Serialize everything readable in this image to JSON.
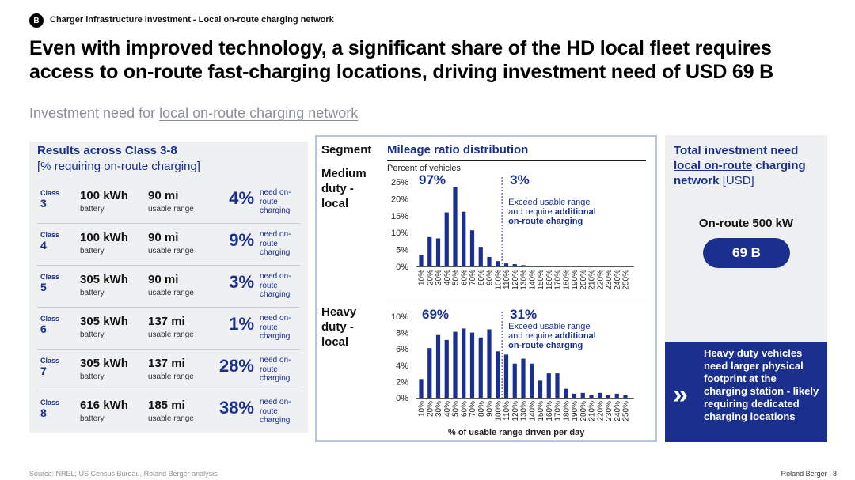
{
  "header": {
    "badge": "B",
    "section": "Charger infrastructure investment - Local on-route charging network",
    "title": "Even with improved technology, a significant share of the HD local fleet requires access to on-route fast-charging locations, driving investment need of USD 69 B",
    "subtitle_prefix": "Investment need for ",
    "subtitle_link": "local on-route charging network"
  },
  "results": {
    "title": "Results across Class 3-8",
    "subtitle": "[% requiring on-route charging]",
    "class_label": "Class",
    "battery_label": "battery",
    "range_label": "usable range",
    "need_label": "need on-route charging",
    "rows": [
      {
        "cls": "3",
        "kwh": "100 kWh",
        "mi": "90 mi",
        "pct": "4%"
      },
      {
        "cls": "4",
        "kwh": "100 kWh",
        "mi": "90 mi",
        "pct": "9%"
      },
      {
        "cls": "5",
        "kwh": "305 kWh",
        "mi": "90 mi",
        "pct": "3%"
      },
      {
        "cls": "6",
        "kwh": "305 kWh",
        "mi": "137 mi",
        "pct": "1%"
      },
      {
        "cls": "7",
        "kwh": "305 kWh",
        "mi": "137 mi",
        "pct": "28%"
      },
      {
        "cls": "8",
        "kwh": "616 kWh",
        "mi": "185 mi",
        "pct": "38%"
      }
    ]
  },
  "middle": {
    "segment_header": "Segment",
    "mileage_header": "Mileage ratio distribution",
    "percent_label": "Percent of vehicles",
    "medium_label": "Medium duty - local",
    "heavy_label": "Heavy duty - local",
    "x_axis_label": "% of usable range driven per day"
  },
  "chart_data": [
    {
      "type": "bar",
      "title": "Medium duty - local",
      "ylabel": "Percent of vehicles",
      "xlabel": "% of usable range driven per day",
      "categories": [
        "10%",
        "20%",
        "30%",
        "40%",
        "50%",
        "60%",
        "70%",
        "80%",
        "90%",
        "100%",
        "110%",
        "120%",
        "130%",
        "140%",
        "150%",
        "160%",
        "170%",
        "180%",
        "190%",
        "200%",
        "210%",
        "220%",
        "230%",
        "240%",
        "250%"
      ],
      "values": [
        3.5,
        8.7,
        8.3,
        16,
        23.5,
        16.2,
        10.7,
        5.8,
        2.8,
        1.6,
        0.9,
        0.7,
        0.4,
        0.2,
        0.15,
        0.1,
        0.05,
        0.05,
        0.02,
        0,
        0,
        0,
        0,
        0,
        0
      ],
      "ylim": [
        0,
        25
      ],
      "yticks": [
        "0%",
        "5%",
        "10%",
        "15%",
        "20%",
        "25%"
      ],
      "threshold_after_index": 9,
      "left_share": "97%",
      "right_share": "3%",
      "note_line1": "Exceed usable range",
      "note_line2": "and require ",
      "note_bold1": "additional",
      "note_bold2": "on-route charging"
    },
    {
      "type": "bar",
      "title": "Heavy duty - local",
      "ylabel": "Percent of vehicles",
      "xlabel": "% of usable range driven per day",
      "categories": [
        "10%",
        "20%",
        "30%",
        "40%",
        "50%",
        "60%",
        "70%",
        "80%",
        "90%",
        "100%",
        "110%",
        "120%",
        "130%",
        "140%",
        "150%",
        "160%",
        "170%",
        "180%",
        "190%",
        "200%",
        "210%",
        "220%",
        "230%",
        "240%",
        "250%"
      ],
      "values": [
        2.3,
        6.1,
        7.7,
        7.1,
        8.1,
        8.5,
        8.0,
        7.4,
        8.4,
        5.7,
        5.3,
        4.2,
        4.8,
        4.2,
        2.1,
        3.0,
        3.0,
        1.1,
        0.5,
        0.6,
        0.3,
        0.6,
        0.3,
        0.5,
        0.3
      ],
      "ylim": [
        0,
        10
      ],
      "yticks": [
        "0%",
        "2%",
        "4%",
        "6%",
        "8%",
        "10%"
      ],
      "threshold_after_index": 9,
      "left_share": "69%",
      "right_share": "31%",
      "note_line1": "Exceed usable range",
      "note_line2": "and require ",
      "note_bold1": "additional",
      "note_bold2": "on-route charging"
    }
  ],
  "right": {
    "title_1": "Total investment need",
    "title_link": "local on-route",
    "title_2": " charging network ",
    "title_usd": "[USD]",
    "onroute": "On-route 500 kW",
    "amount": "69 B",
    "chevron": "»",
    "box_text": "Heavy duty vehicles need larger physical footprint at the charging station - likely requiring dedicated charging locations"
  },
  "footer": {
    "source": "Source: NREL; US Census Bureau, Roland Berger analysis",
    "brand": "Roland Berger  |  8"
  },
  "colors": {
    "navy": "#1b2f8f",
    "grey_panel": "#eef0f2"
  }
}
